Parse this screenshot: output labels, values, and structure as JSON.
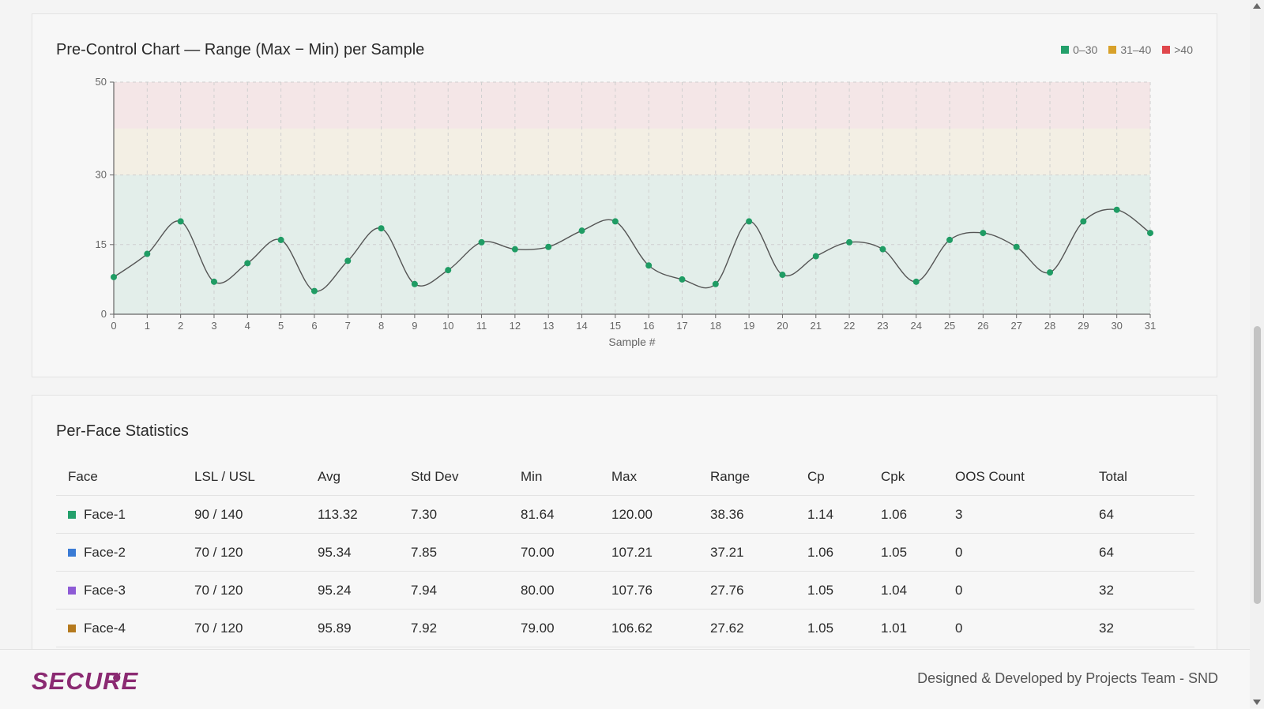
{
  "chart_card": {
    "title": "Pre-Control Chart — Range (Max − Min) per Sample",
    "legend": [
      {
        "label": "0–30",
        "color": "#23a06b"
      },
      {
        "label": "31–40",
        "color": "#d8a12a"
      },
      {
        "label": ">40",
        "color": "#e0474c"
      }
    ]
  },
  "chart_data": {
    "type": "line",
    "title": "Pre-Control Chart — Range (Max − Min) per Sample",
    "xlabel": "Sample #",
    "ylabel": "",
    "x": [
      0,
      1,
      2,
      3,
      4,
      5,
      6,
      7,
      8,
      9,
      10,
      11,
      12,
      13,
      14,
      15,
      16,
      17,
      18,
      19,
      20,
      21,
      22,
      23,
      24,
      25,
      26,
      27,
      28,
      29,
      30,
      31
    ],
    "values": [
      8,
      13,
      20,
      7,
      11,
      16,
      5,
      11.5,
      18.5,
      6.5,
      9.5,
      15.5,
      14,
      14.5,
      18,
      20,
      10.5,
      7.5,
      6.5,
      20,
      8.5,
      12.5,
      15.5,
      14,
      7,
      16,
      17.5,
      14.5,
      9,
      20,
      22.5,
      17.5
    ],
    "ylim": [
      0,
      50
    ],
    "yticks": [
      0,
      15,
      30,
      50
    ],
    "zones": [
      {
        "from": 0,
        "to": 30,
        "label": "0–30",
        "color": "#23a06b"
      },
      {
        "from": 30,
        "to": 40,
        "label": "31–40",
        "color": "#d8a12a"
      },
      {
        "from": 40,
        "to": 50,
        "label": ">40",
        "color": "#e0474c"
      }
    ],
    "grid": true,
    "legend_position": "top-right",
    "line_color": "#555555",
    "point_color": "#1f9c64"
  },
  "stats_card": {
    "title": "Per-Face Statistics",
    "columns": [
      "Face",
      "LSL / USL",
      "Avg",
      "Std Dev",
      "Min",
      "Max",
      "Range",
      "Cp",
      "Cpk",
      "OOS Count",
      "Total"
    ],
    "rows": [
      {
        "face": "Face-1",
        "color": "#23a06b",
        "limits": "90 / 140",
        "avg": "113.32",
        "std": "7.30",
        "min": "81.64",
        "max": "120.00",
        "range": "38.36",
        "cp": "1.14",
        "cpk": "1.06",
        "oos": "3",
        "total": "64"
      },
      {
        "face": "Face-2",
        "color": "#3a7bd5",
        "limits": "70 / 120",
        "avg": "95.34",
        "std": "7.85",
        "min": "70.00",
        "max": "107.21",
        "range": "37.21",
        "cp": "1.06",
        "cpk": "1.05",
        "oos": "0",
        "total": "64"
      },
      {
        "face": "Face-3",
        "color": "#8e5bd6",
        "limits": "70 / 120",
        "avg": "95.24",
        "std": "7.94",
        "min": "80.00",
        "max": "107.76",
        "range": "27.76",
        "cp": "1.05",
        "cpk": "1.04",
        "oos": "0",
        "total": "32"
      },
      {
        "face": "Face-4",
        "color": "#b57a1e",
        "limits": "70 / 120",
        "avg": "95.89",
        "std": "7.92",
        "min": "79.00",
        "max": "106.62",
        "range": "27.62",
        "cp": "1.05",
        "cpk": "1.01",
        "oos": "0",
        "total": "32"
      }
    ]
  },
  "footer": {
    "logo_text": "SECURE",
    "credit": "Designed & Developed by Projects Team - SND"
  }
}
